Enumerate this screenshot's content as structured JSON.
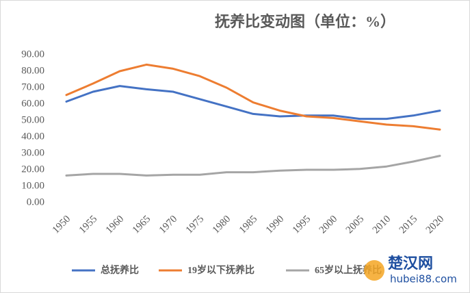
{
  "chart_data": {
    "type": "line",
    "title": "抚养比变动图（单位：%）",
    "categories": [
      "1950",
      "1955",
      "1960",
      "1965",
      "1970",
      "1975",
      "1980",
      "1985",
      "1990",
      "1995",
      "2000",
      "2005",
      "2010",
      "2015",
      "2020"
    ],
    "series": [
      {
        "name": "总抚养比",
        "color": "#4472c4",
        "values": [
          61.5,
          67.5,
          71,
          69,
          67.5,
          63,
          58.5,
          54,
          52.5,
          53,
          53,
          51,
          51,
          53,
          56
        ]
      },
      {
        "name": "19岁以下抚养比",
        "color": "#ed7d31",
        "values": [
          65.5,
          72.5,
          80,
          84,
          81.5,
          77,
          70,
          61,
          56,
          52.5,
          51.5,
          49.5,
          47.5,
          46.5,
          44.5
        ]
      },
      {
        "name": "65岁以上抚养比",
        "color": "#a5a5a5",
        "values": [
          16.5,
          17.5,
          17.5,
          16.5,
          17,
          17,
          18.5,
          18.5,
          19.5,
          20,
          20,
          20.5,
          22,
          25,
          28.5
        ]
      }
    ],
    "ylim": [
      0,
      90
    ],
    "yticks": [
      {
        "value": 0,
        "label": "0.00"
      },
      {
        "value": 10,
        "label": "10.00"
      },
      {
        "value": 20,
        "label": "20.00"
      },
      {
        "value": 30,
        "label": "30.00"
      },
      {
        "value": 40,
        "label": "40.00"
      },
      {
        "value": 50,
        "label": "50.00"
      },
      {
        "value": 60,
        "label": "60.00"
      },
      {
        "value": 70,
        "label": "70.00"
      },
      {
        "value": 80,
        "label": "80.00"
      },
      {
        "value": 90,
        "label": "90.00"
      }
    ],
    "grid": false,
    "legend": "bottom",
    "watermark": [
      "楚汉网",
      "hubei88.com"
    ]
  }
}
